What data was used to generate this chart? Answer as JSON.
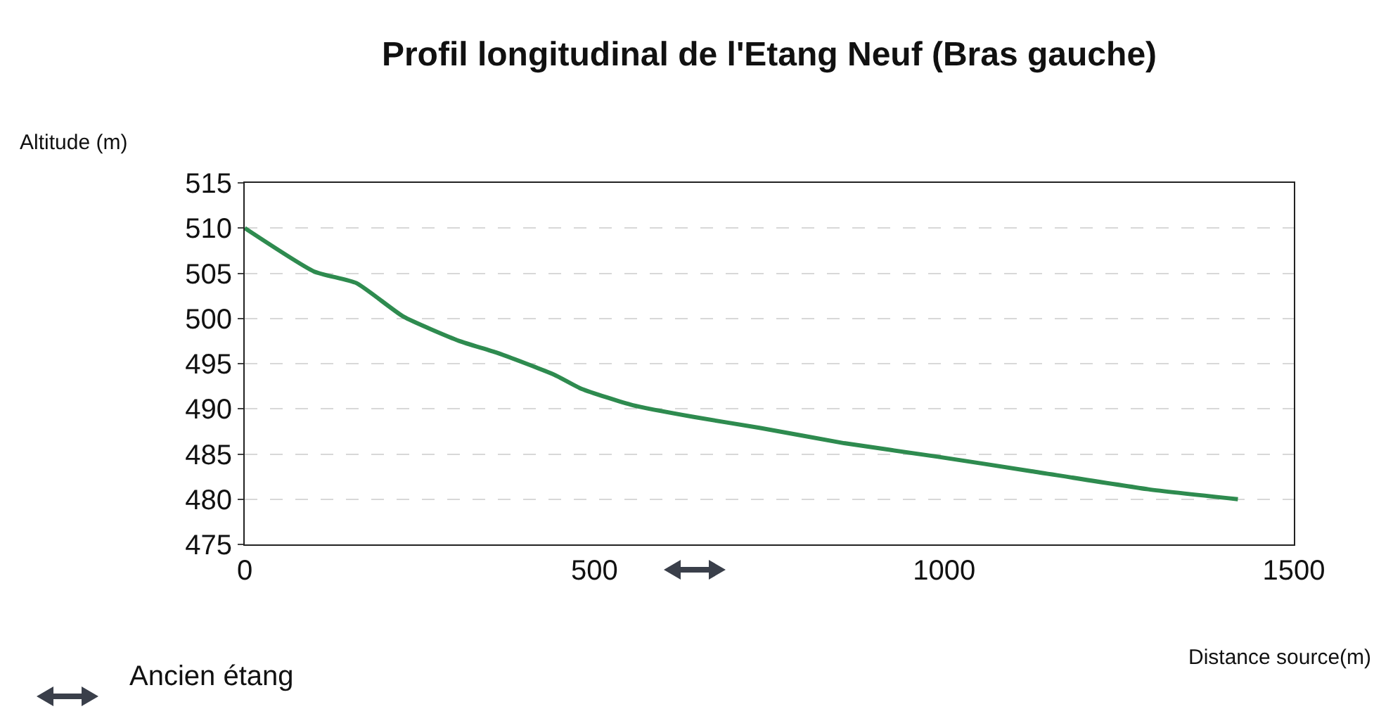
{
  "chart_data": {
    "type": "line",
    "title": "Profil longitudinal de l'Etang Neuf (Bras gauche)",
    "xlabel": "Distance source(m)",
    "ylabel": "Altitude (m)",
    "x": [
      0,
      99,
      160,
      227,
      307,
      361,
      442,
      482,
      555,
      642,
      736,
      857,
      991,
      1125,
      1292,
      1420
    ],
    "series": [
      {
        "color": "#2e8b4f",
        "values": [
          510,
          505.2,
          503.9,
          500.2,
          497.5,
          496.2,
          493.8,
          492.2,
          490.4,
          489.1,
          487.9,
          486.2,
          484.7,
          483.1,
          481.1,
          480
        ]
      }
    ],
    "xlim": [
      0,
      1500
    ],
    "xticks": [
      0,
      500,
      1000,
      1500
    ],
    "ylim": [
      475,
      515
    ],
    "yticks": [
      475,
      480,
      485,
      490,
      495,
      500,
      505,
      510,
      515
    ],
    "grid": "y",
    "legend": false,
    "marker": "none",
    "line_style": "solid",
    "annotations": [
      "Ancien étang"
    ]
  }
}
